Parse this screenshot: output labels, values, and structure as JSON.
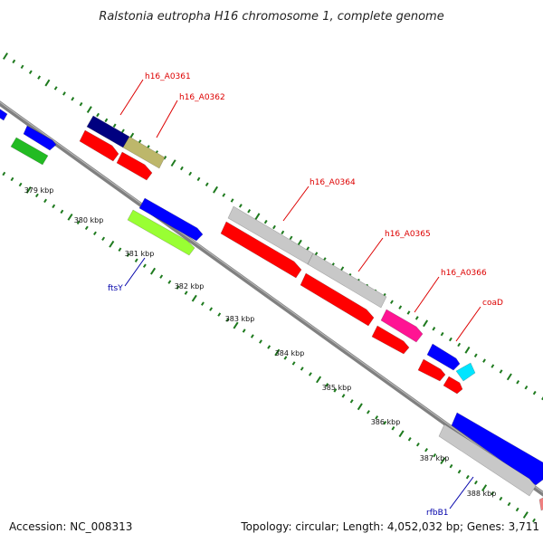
{
  "title": "Ralstonia eutropha H16 chromosome 1, complete genome",
  "footer": {
    "accession": "Accession: NC_008313",
    "summary": "Topology: circular; Length: 4,052,032 bp; Genes: 3,711"
  },
  "colors": {
    "backbone": "#808080",
    "tick": "#1e7a1e",
    "red_label": "#dd0000",
    "blue_label": "#0000aa",
    "red": "#ff0000",
    "navy": "#000080",
    "khaki": "#bdb76b",
    "gray": "#c8c8c8",
    "magenta": "#ff1493",
    "blue": "#0000ff",
    "cyan": "#00e5ff",
    "green": "#22bb22",
    "lime": "#99ff33",
    "pink": "#f08080"
  },
  "kbp_labels": [
    "379 kbp",
    "380 kbp",
    "381 kbp",
    "382 kbp",
    "383 kbp",
    "384 kbp",
    "385 kbp",
    "386 kbp",
    "387 kbp",
    "388 kbp"
  ],
  "gene_labels": [
    {
      "name": "h16_A0361",
      "color": "red"
    },
    {
      "name": "h16_A0362",
      "color": "red"
    },
    {
      "name": "h16_A0364",
      "color": "red"
    },
    {
      "name": "h16_A0365",
      "color": "red"
    },
    {
      "name": "h16_A0366",
      "color": "red"
    },
    {
      "name": "coaD",
      "color": "red"
    },
    {
      "name": "ftsY",
      "color": "blue"
    },
    {
      "name": "rfbB1",
      "color": "blue"
    }
  ]
}
